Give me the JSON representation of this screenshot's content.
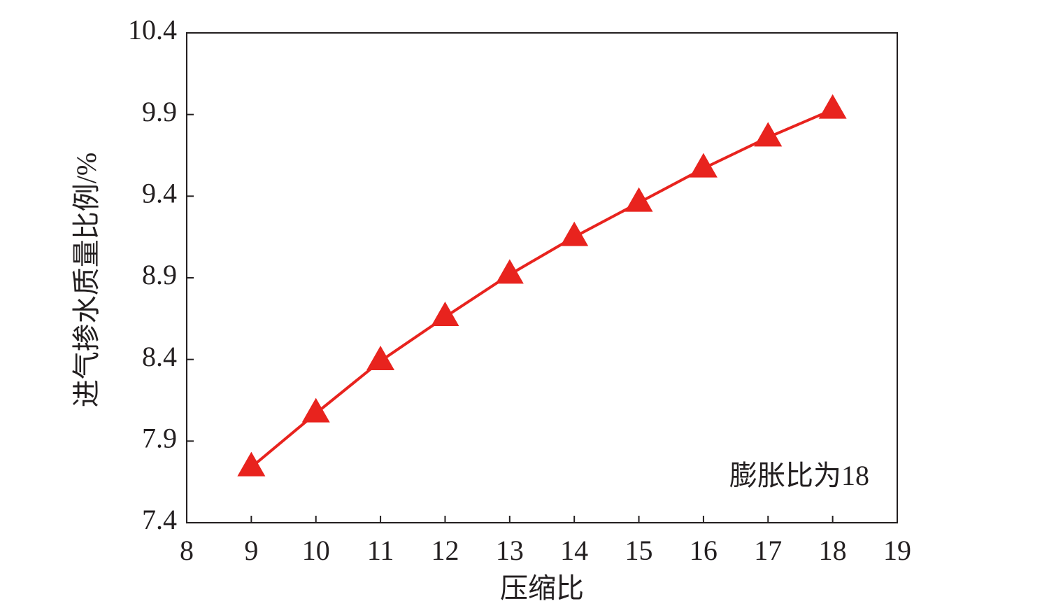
{
  "chart_data": {
    "type": "line",
    "x_label": "压缩比",
    "y_label": "进气掺水质量比例/%",
    "annotation": "膨胀比为18",
    "series": [
      {
        "color": "#e8231e",
        "marker": "triangle",
        "x": [
          9,
          10,
          11,
          12,
          13,
          14,
          15,
          16,
          17,
          18
        ],
        "values": [
          7.74,
          8.07,
          8.39,
          8.66,
          8.92,
          9.15,
          9.36,
          9.57,
          9.76,
          9.93
        ]
      }
    ],
    "xlim": [
      8,
      19
    ],
    "xticks": [
      8,
      9,
      10,
      11,
      12,
      13,
      14,
      15,
      16,
      17,
      18,
      19
    ],
    "ylim": [
      7.4,
      10.4
    ],
    "yticks": [
      7.4,
      7.9,
      8.4,
      8.9,
      9.4,
      9.9,
      10.4
    ],
    "grid": false
  }
}
